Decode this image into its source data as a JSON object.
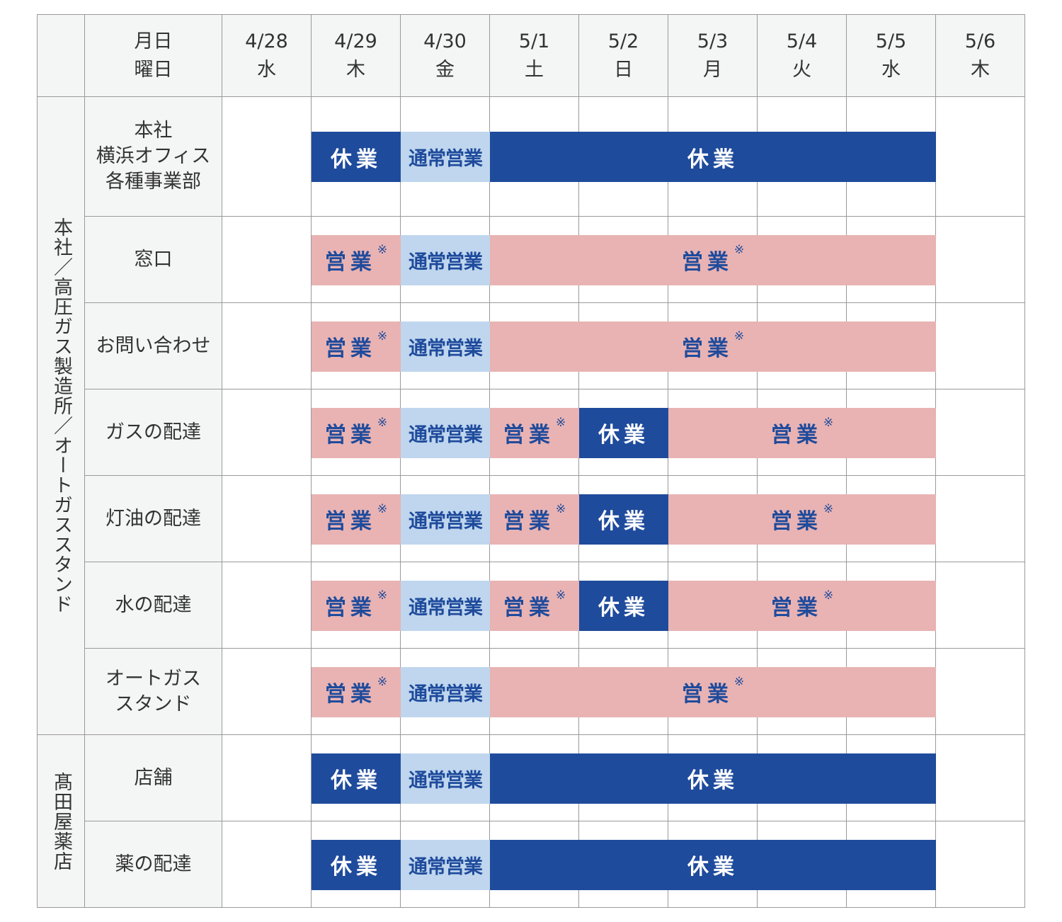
{
  "colors": {
    "closed": "#1f4b9c",
    "normal": "#bfd6ee",
    "open": "#e9b3b3",
    "bar_text_blue": "#1f4b9c"
  },
  "corner_header": {
    "line1": "月日",
    "line2": "曜日"
  },
  "dates": [
    {
      "date": "4/28",
      "weekday": "水"
    },
    {
      "date": "4/29",
      "weekday": "木"
    },
    {
      "date": "4/30",
      "weekday": "金"
    },
    {
      "date": "5/1",
      "weekday": "土"
    },
    {
      "date": "5/2",
      "weekday": "日"
    },
    {
      "date": "5/3",
      "weekday": "月"
    },
    {
      "date": "5/4",
      "weekday": "火"
    },
    {
      "date": "5/5",
      "weekday": "水"
    },
    {
      "date": "5/6",
      "weekday": "木"
    }
  ],
  "groups": [
    {
      "name": "本社／高圧ガス製造所／オートガススタンド",
      "rows": 7
    },
    {
      "name": "髙田屋薬店",
      "rows": 2
    }
  ],
  "rows": [
    {
      "label": [
        "本社",
        "横浜オフィス",
        "各種事業部"
      ],
      "spans": [
        {
          "from": 1,
          "to": 1,
          "status": "closed"
        },
        {
          "from": 2,
          "to": 2,
          "status": "normal"
        },
        {
          "from": 3,
          "to": 7,
          "status": "closed"
        }
      ]
    },
    {
      "label": [
        "窓口"
      ],
      "spans": [
        {
          "from": 1,
          "to": 1,
          "status": "open"
        },
        {
          "from": 2,
          "to": 2,
          "status": "normal"
        },
        {
          "from": 3,
          "to": 7,
          "status": "open"
        }
      ]
    },
    {
      "label": [
        "お問い合わせ"
      ],
      "spans": [
        {
          "from": 1,
          "to": 1,
          "status": "open"
        },
        {
          "from": 2,
          "to": 2,
          "status": "normal"
        },
        {
          "from": 3,
          "to": 7,
          "status": "open"
        }
      ]
    },
    {
      "label": [
        "ガスの配達"
      ],
      "spans": [
        {
          "from": 1,
          "to": 1,
          "status": "open"
        },
        {
          "from": 2,
          "to": 2,
          "status": "normal"
        },
        {
          "from": 3,
          "to": 3,
          "status": "open"
        },
        {
          "from": 4,
          "to": 4,
          "status": "closed"
        },
        {
          "from": 5,
          "to": 7,
          "status": "open"
        }
      ]
    },
    {
      "label": [
        "灯油の配達"
      ],
      "spans": [
        {
          "from": 1,
          "to": 1,
          "status": "open"
        },
        {
          "from": 2,
          "to": 2,
          "status": "normal"
        },
        {
          "from": 3,
          "to": 3,
          "status": "open"
        },
        {
          "from": 4,
          "to": 4,
          "status": "closed"
        },
        {
          "from": 5,
          "to": 7,
          "status": "open"
        }
      ]
    },
    {
      "label": [
        "水の配達"
      ],
      "spans": [
        {
          "from": 1,
          "to": 1,
          "status": "open"
        },
        {
          "from": 2,
          "to": 2,
          "status": "normal"
        },
        {
          "from": 3,
          "to": 3,
          "status": "open"
        },
        {
          "from": 4,
          "to": 4,
          "status": "closed"
        },
        {
          "from": 5,
          "to": 7,
          "status": "open"
        }
      ]
    },
    {
      "label": [
        "オートガス",
        "スタンド"
      ],
      "spans": [
        {
          "from": 1,
          "to": 1,
          "status": "open"
        },
        {
          "from": 2,
          "to": 2,
          "status": "normal"
        },
        {
          "from": 3,
          "to": 7,
          "status": "open"
        }
      ]
    },
    {
      "label": [
        "店舗"
      ],
      "spans": [
        {
          "from": 1,
          "to": 1,
          "status": "closed"
        },
        {
          "from": 2,
          "to": 2,
          "status": "normal"
        },
        {
          "from": 3,
          "to": 7,
          "status": "closed"
        }
      ]
    },
    {
      "label": [
        "薬の配達"
      ],
      "spans": [
        {
          "from": 1,
          "to": 1,
          "status": "closed"
        },
        {
          "from": 2,
          "to": 2,
          "status": "normal"
        },
        {
          "from": 3,
          "to": 7,
          "status": "closed"
        }
      ]
    }
  ],
  "status_labels": {
    "closed": {
      "text": "休業",
      "mark": ""
    },
    "normal": {
      "text": "通常営業",
      "mark": ""
    },
    "open": {
      "text": "営業",
      "mark": "※"
    }
  }
}
